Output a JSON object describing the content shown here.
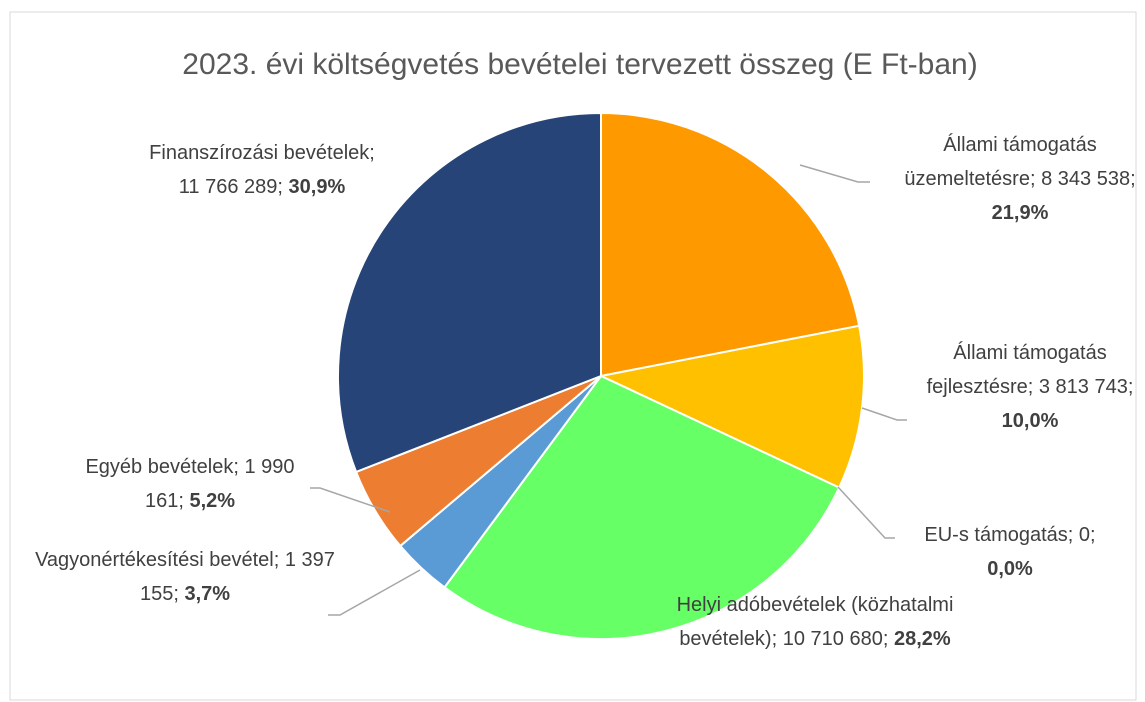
{
  "chart_data": {
    "type": "pie",
    "title": "2023. évi költségvetés bevételei tervezett összeg (E Ft-ban)",
    "categories": [
      "Állami támogatás üzemeltetésre",
      "Állami támogatás fejlesztésre",
      "EU-s támogatás",
      "Helyi adóbevételek (közhatalmi bevételek)",
      "Vagyonértékesítési bevétel",
      "Egyéb bevételek",
      "Finanszírozási bevételek"
    ],
    "values": [
      8343538,
      3813743,
      0,
      10710680,
      1397155,
      1990161,
      11766289
    ],
    "value_labels": [
      "8 343 538",
      "3 813 743",
      "0",
      "10 710 680",
      "1 397 155",
      "1 990 161",
      "11 766 289"
    ],
    "percent_labels": [
      "21,9%",
      "10,0%",
      "0,0%",
      "28,2%",
      "3,7%",
      "5,2%",
      "30,9%"
    ],
    "colors": [
      "#FF9900",
      "#FFC000",
      "#A5A5A5",
      "#66FF66",
      "#5B9BD5",
      "#ED7D31",
      "#264478"
    ]
  }
}
